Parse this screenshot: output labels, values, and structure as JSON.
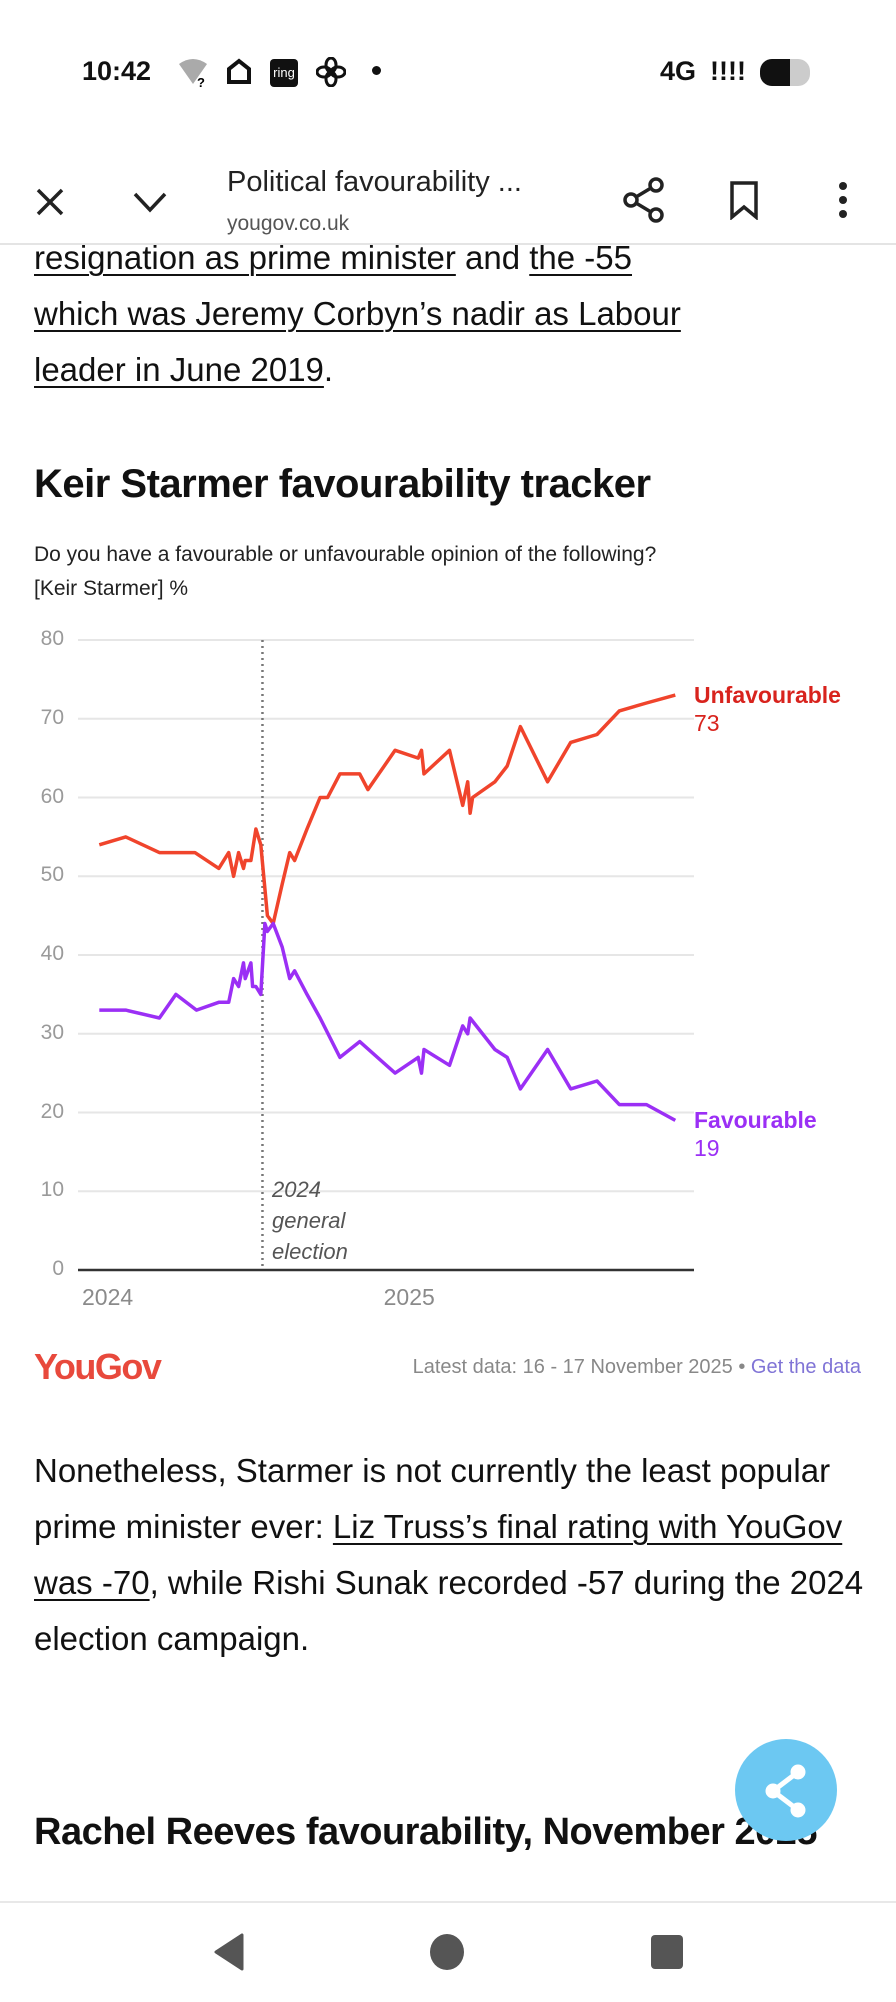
{
  "status_bar": {
    "time": "10:42",
    "network": "4G",
    "signal": "!!!!",
    "icons": [
      "wifi-question-icon",
      "home-icon",
      "ring-app-icon",
      "fan-icon",
      "dot-icon",
      "battery-icon"
    ],
    "ring_label": "ring"
  },
  "toolbar": {
    "title": "Political favourability ...",
    "domain": "yougov.co.uk",
    "icons": [
      "close-icon",
      "chevron-down-icon",
      "share-icon",
      "bookmark-icon",
      "more-vert-icon"
    ]
  },
  "intro": {
    "line1_link1": "resignation as prime minister",
    "line1_mid": " and ",
    "line1_link2": "the -55",
    "line2_link": "which was Jeremy Corbyn’s nadir as Labour",
    "line3_link": "leader in June 2019",
    "line3_end": "."
  },
  "chart_heading": "Keir Starmer favourability tracker",
  "chart_subtitle_1": "Do you have a favourable or unfavourable opinion of the following?",
  "chart_subtitle_2": "[Keir Starmer] %",
  "chart_data": {
    "type": "line",
    "title": "Keir Starmer favourability tracker",
    "subtitle": "Do you have a favourable or unfavourable opinion of the following? [Keir Starmer] %",
    "ylim": [
      0,
      80
    ],
    "yticks": [
      "0",
      "10",
      "20",
      "30",
      "40",
      "50",
      "60",
      "70",
      "80"
    ],
    "xticks": [
      {
        "label": "2024",
        "date": "2024-01-01"
      },
      {
        "label": "2025",
        "date": "2025-01-01"
      }
    ],
    "grid": true,
    "annotation": {
      "date": "2024-07-04",
      "lines": [
        "2024",
        "general",
        "election"
      ]
    },
    "series": [
      {
        "name": "Unfavourable",
        "color": "#f0442c",
        "label_color": "#d8231d",
        "last_value": "73",
        "points": [
          [
            "2023-12-19",
            54
          ],
          [
            "2024-01-20",
            55
          ],
          [
            "2024-03-01",
            53
          ],
          [
            "2024-04-13",
            53
          ],
          [
            "2024-05-12",
            51
          ],
          [
            "2024-05-24",
            53
          ],
          [
            "2024-05-30",
            50
          ],
          [
            "2024-06-05",
            53
          ],
          [
            "2024-06-11",
            51
          ],
          [
            "2024-06-13",
            52
          ],
          [
            "2024-06-20",
            52
          ],
          [
            "2024-06-26",
            56
          ],
          [
            "2024-07-02",
            54
          ],
          [
            "2024-07-10",
            45
          ],
          [
            "2024-07-17",
            44
          ],
          [
            "2024-07-28",
            49
          ],
          [
            "2024-08-06",
            53
          ],
          [
            "2024-08-12",
            52
          ],
          [
            "2024-08-27",
            56
          ],
          [
            "2024-09-12",
            60
          ],
          [
            "2024-09-21",
            60
          ],
          [
            "2024-10-06",
            63
          ],
          [
            "2024-10-30",
            63
          ],
          [
            "2024-11-09",
            61
          ],
          [
            "2024-12-12",
            66
          ],
          [
            "2025-01-09",
            65
          ],
          [
            "2025-01-13",
            66
          ],
          [
            "2025-01-16",
            63
          ],
          [
            "2025-02-16",
            66
          ],
          [
            "2025-03-04",
            59
          ],
          [
            "2025-03-10",
            62
          ],
          [
            "2025-03-13",
            58
          ],
          [
            "2025-03-16",
            60
          ],
          [
            "2025-04-12",
            62
          ],
          [
            "2025-04-27",
            64
          ],
          [
            "2025-05-13",
            69
          ],
          [
            "2025-06-15",
            62
          ],
          [
            "2025-07-13",
            67
          ],
          [
            "2025-08-14",
            68
          ],
          [
            "2025-09-10",
            71
          ],
          [
            "2025-10-13",
            72
          ],
          [
            "2025-11-17",
            73
          ]
        ]
      },
      {
        "name": "Favourable",
        "color": "#9b2ff5",
        "label_color": "#9b2ff5",
        "last_value": "19",
        "points": [
          [
            "2023-12-19",
            33
          ],
          [
            "2024-01-20",
            33
          ],
          [
            "2024-03-01",
            32
          ],
          [
            "2024-03-21",
            35
          ],
          [
            "2024-04-15",
            33
          ],
          [
            "2024-05-12",
            34
          ],
          [
            "2024-05-24",
            34
          ],
          [
            "2024-05-30",
            37
          ],
          [
            "2024-06-05",
            36
          ],
          [
            "2024-06-11",
            39
          ],
          [
            "2024-06-13",
            37
          ],
          [
            "2024-06-20",
            39
          ],
          [
            "2024-06-22",
            36
          ],
          [
            "2024-06-26",
            36
          ],
          [
            "2024-07-02",
            35
          ],
          [
            "2024-07-07",
            44
          ],
          [
            "2024-07-10",
            43
          ],
          [
            "2024-07-17",
            44
          ],
          [
            "2024-07-28",
            41
          ],
          [
            "2024-08-06",
            37
          ],
          [
            "2024-08-12",
            38
          ],
          [
            "2024-08-27",
            35
          ],
          [
            "2024-09-12",
            32
          ],
          [
            "2024-10-06",
            27
          ],
          [
            "2024-10-30",
            29
          ],
          [
            "2024-12-12",
            25
          ],
          [
            "2025-01-09",
            27
          ],
          [
            "2025-01-13",
            25
          ],
          [
            "2025-01-16",
            28
          ],
          [
            "2025-02-16",
            26
          ],
          [
            "2025-03-04",
            31
          ],
          [
            "2025-03-10",
            30
          ],
          [
            "2025-03-13",
            32
          ],
          [
            "2025-04-12",
            28
          ],
          [
            "2025-04-27",
            27
          ],
          [
            "2025-05-13",
            23
          ],
          [
            "2025-06-15",
            28
          ],
          [
            "2025-07-13",
            23
          ],
          [
            "2025-08-14",
            24
          ],
          [
            "2025-09-10",
            21
          ],
          [
            "2025-10-13",
            21
          ],
          [
            "2025-11-17",
            19
          ]
        ]
      }
    ]
  },
  "footer": {
    "logo": "YouGov",
    "latest": "Latest data: 16 - 17 November 2025",
    "sep": " • ",
    "get_data": "Get the data"
  },
  "para2": {
    "t1": "Nonetheless, Starmer is not currently the least popular prime minister ever: ",
    "link": "Liz Truss’s final rating with YouGov was -70",
    "t2": ", while Rishi Sunak recorded -57 during the 2024 election campaign."
  },
  "next_heading": "Rachel Reeves favourability, November 2025",
  "fab": {
    "icon": "share-icon",
    "color": "#6cc8f2"
  },
  "nav": {
    "icons": [
      "back-icon",
      "home-icon",
      "recents-icon"
    ]
  }
}
